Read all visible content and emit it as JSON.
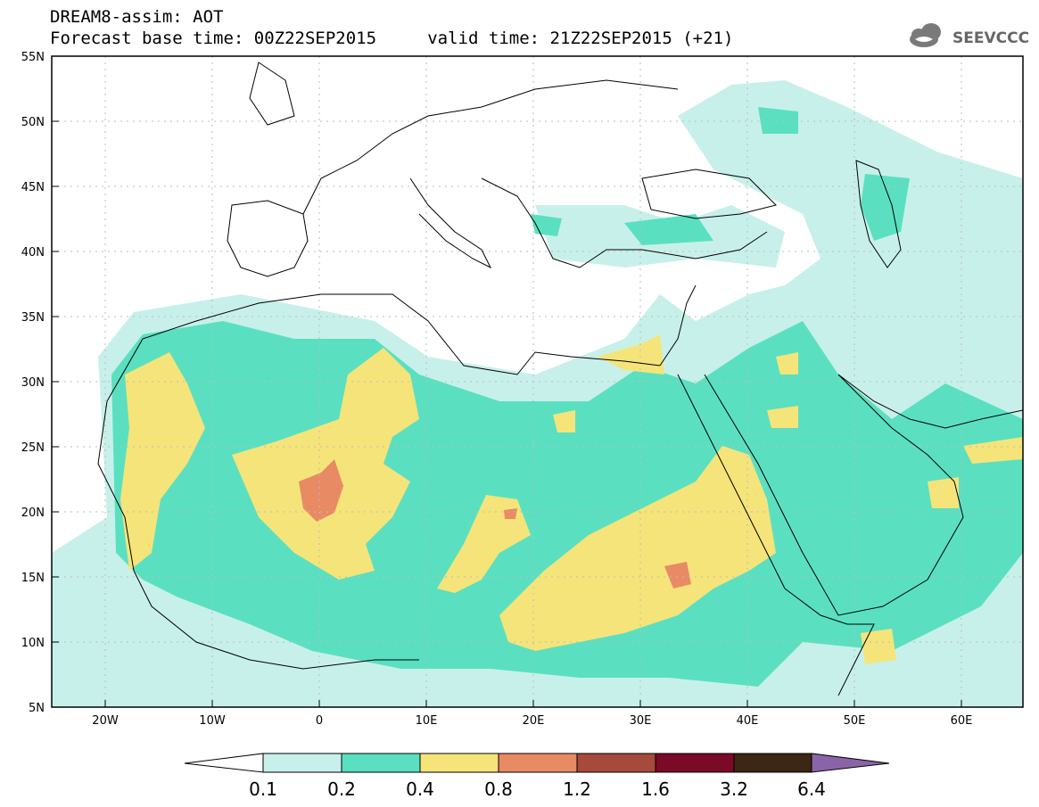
{
  "header": {
    "line1": "DREAM8-assim: AOT",
    "line2": "Forecast base time: 00Z22SEP2015     valid time: 21Z22SEP2015 (+21)",
    "logo_text": "SEEVCCC"
  },
  "axes": {
    "lat_labels": [
      "55N",
      "50N",
      "45N",
      "40N",
      "35N",
      "30N",
      "25N",
      "20N",
      "15N",
      "10N",
      "5N"
    ],
    "lon_labels": [
      "20W",
      "10W",
      "0",
      "10E",
      "20E",
      "30E",
      "40E",
      "50E",
      "60E"
    ]
  },
  "colorbar": {
    "labels": [
      "0.1",
      "0.2",
      "0.4",
      "0.8",
      "1.2",
      "1.6",
      "3.2",
      "6.4"
    ],
    "colors": [
      "#c8f0ea",
      "#5ae0c0",
      "#f5e47a",
      "#e88a64",
      "#a64a3c",
      "#7a0a28",
      "#3c2614",
      "#8a64a8"
    ]
  },
  "palette": {
    "level1": "#c8f0ea",
    "level2": "#5ae0c0",
    "level3": "#f5e47a",
    "level4": "#e88a64"
  }
}
